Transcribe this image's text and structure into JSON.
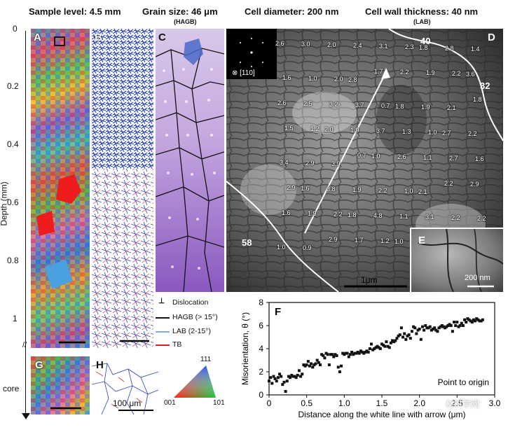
{
  "header": {
    "sample_level": "Sample level: 4.5 mm",
    "grain_size": "Grain size: 46 μm",
    "grain_size_sub": "(HAGB)",
    "cell_diameter": "Cell diameter: 200 nm",
    "cell_wall": "Cell wall thickness: 40 nm",
    "cell_wall_sub": "(LAB)"
  },
  "depth_axis": {
    "label": "Depth (mm)",
    "ticks": [
      "0",
      "0.2",
      "0.4",
      "0.6",
      "0.8",
      "1"
    ],
    "core_label": "core"
  },
  "panel_labels": {
    "A": "A",
    "B": "B",
    "C": "C",
    "D": "D",
    "E": "E",
    "F": "F",
    "G": "G",
    "H": "H"
  },
  "panel_d": {
    "orientation": "⊗ [110]",
    "boundary_labels": [
      "40",
      "32",
      "58"
    ],
    "scale_bar": "1μm",
    "misorientation_values": [
      "2.6",
      "3.0",
      "2.0",
      "2.4",
      "3.1",
      "2.3",
      "1.8",
      "2.8",
      "1.4",
      "1.6",
      "1.0",
      "2.0",
      "2.8",
      "1.7",
      "2.2",
      "1.9",
      "2.2",
      "3.6",
      "2.6",
      "2.5",
      "3.2",
      "3.7",
      "0.7",
      "1.8",
      "1.9",
      "2.1",
      "1.8",
      "1.5",
      "1.2",
      "2.0",
      "1.9",
      "3.7",
      "1.3",
      "1.0",
      "2.7",
      "2.2",
      "3.4",
      "2.9",
      "3.9",
      "0.7",
      "1.0",
      "2.6",
      "1.1",
      "2.7",
      "1.6",
      "2.9",
      "1.6",
      "3.8",
      "1.9",
      "2.2",
      "1.0",
      "2.1",
      "2.2",
      "2.9",
      "1.6",
      "1.9",
      "2.2",
      "1.8",
      "4.8",
      "1.1",
      "3.1",
      "2.2",
      "2.2",
      "1.0",
      "0.9",
      "2.9",
      "1.7",
      "1.2",
      "1.0",
      "1.9",
      "1.0",
      "1.3"
    ]
  },
  "panel_e": {
    "scale_bar": "200 nm"
  },
  "legend": {
    "dislocation": "Dislocation",
    "hagb": "HAGB (> 15°)",
    "lab": "LAB (2-15°)",
    "tb": "TB",
    "hagb_color": "#111111",
    "lab_color": "#7fb0d8",
    "tb_color": "#e02020"
  },
  "ipf_triangle": {
    "top": "111",
    "left": "001",
    "right": "101"
  },
  "scale_bar_h": "100 μm",
  "watermark": "材料学网",
  "chart_data": {
    "type": "scatter",
    "title": "F",
    "xlabel": "Distance along the white line with arrow (μm)",
    "ylabel": "Misorientation, θ (°)",
    "xlim": [
      0,
      3.0
    ],
    "ylim": [
      0,
      8
    ],
    "xticks": [
      "0",
      "0.5",
      "1.0",
      "1.5",
      "2.0",
      "2.5",
      "3.0"
    ],
    "yticks": [
      "0",
      "2",
      "4",
      "6",
      "8"
    ],
    "annotation": "Point to origin",
    "x": [
      0.0,
      0.02,
      0.04,
      0.06,
      0.08,
      0.1,
      0.12,
      0.14,
      0.16,
      0.18,
      0.2,
      0.22,
      0.24,
      0.26,
      0.28,
      0.3,
      0.32,
      0.34,
      0.36,
      0.38,
      0.4,
      0.42,
      0.44,
      0.46,
      0.48,
      0.5,
      0.52,
      0.54,
      0.56,
      0.58,
      0.6,
      0.62,
      0.64,
      0.66,
      0.68,
      0.7,
      0.72,
      0.74,
      0.76,
      0.78,
      0.8,
      0.82,
      0.84,
      0.86,
      0.88,
      0.9,
      0.92,
      0.94,
      0.96,
      0.98,
      1.0,
      1.02,
      1.04,
      1.06,
      1.08,
      1.1,
      1.12,
      1.14,
      1.16,
      1.18,
      1.2,
      1.22,
      1.24,
      1.26,
      1.28,
      1.3,
      1.32,
      1.34,
      1.36,
      1.38,
      1.4,
      1.42,
      1.44,
      1.46,
      1.48,
      1.5,
      1.52,
      1.54,
      1.56,
      1.58,
      1.6,
      1.62,
      1.64,
      1.66,
      1.68,
      1.7,
      1.72,
      1.74,
      1.76,
      1.78,
      1.8,
      1.82,
      1.84,
      1.86,
      1.88,
      1.9,
      1.92,
      1.94,
      1.96,
      1.98,
      2.0,
      2.02,
      2.04,
      2.06,
      2.08,
      2.1,
      2.12,
      2.14,
      2.16,
      2.18,
      2.2,
      2.22,
      2.24,
      2.26,
      2.28,
      2.3,
      2.32,
      2.34,
      2.36,
      2.38,
      2.4,
      2.42,
      2.44,
      2.46,
      2.48,
      2.5,
      2.52,
      2.54,
      2.56,
      2.58,
      2.6,
      2.62,
      2.64,
      2.66,
      2.68,
      2.7,
      2.72,
      2.74,
      2.76,
      2.78,
      2.8,
      2.82,
      2.84
    ],
    "values": [
      1.2,
      1.5,
      1.0,
      1.6,
      1.4,
      1.2,
      1.5,
      1.8,
      1.6,
      0.9,
      1.1,
      0.3,
      1.2,
      1.6,
      1.5,
      1.7,
      1.6,
      1.6,
      1.5,
      1.7,
      2.1,
      1.6,
      1.8,
      2.6,
      2.5,
      2.6,
      2.9,
      2.5,
      2.7,
      2.4,
      2.6,
      2.7,
      3.0,
      2.8,
      2.6,
      3.5,
      3.4,
      3.2,
      3.6,
      3.5,
      2.6,
      3.5,
      3.5,
      3.3,
      3.5,
      3.4,
      2.4,
      2.0,
      2.5,
      3.6,
      3.5,
      3.6,
      3.6,
      3.3,
      3.5,
      3.7,
      3.5,
      3.6,
      3.6,
      3.7,
      3.6,
      3.8,
      3.7,
      3.6,
      3.7,
      3.8,
      3.7,
      4.0,
      4.4,
      3.9,
      4.0,
      4.1,
      4.2,
      4.1,
      4.0,
      4.4,
      4.3,
      4.2,
      4.6,
      4.2,
      4.1,
      4.5,
      4.7,
      4.6,
      4.7,
      4.9,
      5.1,
      5.2,
      5.8,
      5.0,
      5.3,
      4.8,
      5.1,
      5.2,
      4.9,
      5.5,
      5.9,
      5.8,
      5.3,
      5.6,
      5.7,
      4.8,
      5.9,
      5.6,
      6.0,
      5.8,
      5.8,
      5.9,
      5.6,
      5.7,
      5.8,
      5.6,
      5.5,
      5.8,
      5.9,
      6.0,
      5.9,
      5.8,
      5.9,
      6.0,
      6.1,
      6.0,
      5.5,
      6.3,
      6.0,
      6.3,
      5.9,
      6.0,
      6.2,
      6.0,
      6.5,
      6.3,
      6.6,
      6.5,
      6.4,
      6.3,
      6.5,
      6.4,
      6.6,
      6.5,
      6.4,
      6.4,
      6.5
    ]
  }
}
